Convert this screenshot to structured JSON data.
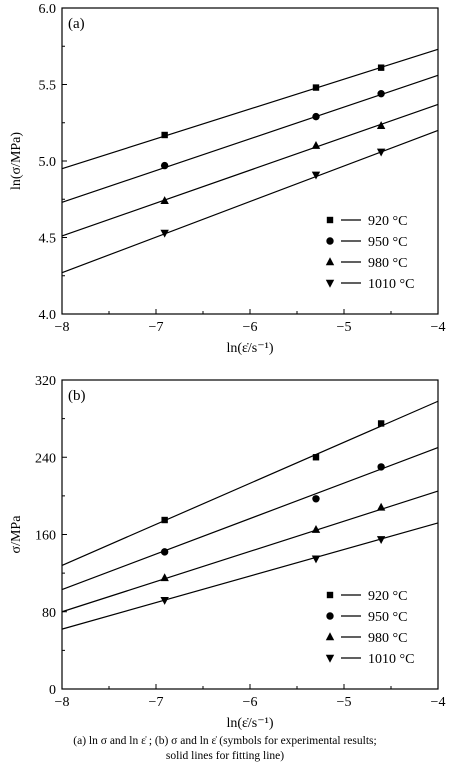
{
  "chart_data": [
    {
      "type": "scatter",
      "panel_label": "(a)",
      "xlabel": "ln(ε̇/s⁻¹)",
      "ylabel": "ln(σ/MPa)",
      "xlim": [
        -8,
        -4
      ],
      "ylim": [
        4.0,
        6.0
      ],
      "x_ticks": [
        -8,
        -7,
        -6,
        -5,
        -4
      ],
      "x_tick_labels": [
        "−8",
        "−7",
        "−6",
        "−5",
        "−4"
      ],
      "y_ticks": [
        4.0,
        4.5,
        5.0,
        5.5,
        6.0
      ],
      "y_tick_labels": [
        "4.0",
        "4.5",
        "5.0",
        "5.5",
        "6.0"
      ],
      "grid": false,
      "legend_position": "lower-right",
      "x": [
        -6.908,
        -5.298,
        -4.605
      ],
      "series": [
        {
          "name": "920 °C",
          "marker": "square",
          "values": [
            5.17,
            5.48,
            5.61
          ],
          "fit_range": [
            4.95,
            5.73
          ]
        },
        {
          "name": "950 °C",
          "marker": "circle",
          "values": [
            4.97,
            5.29,
            5.44
          ],
          "fit_range": [
            4.73,
            5.56
          ]
        },
        {
          "name": "980 °C",
          "marker": "triangle-up",
          "values": [
            4.74,
            5.1,
            5.23
          ],
          "fit_range": [
            4.51,
            5.37
          ]
        },
        {
          "name": "1010 °C",
          "marker": "triangle-down",
          "values": [
            4.53,
            4.91,
            5.06
          ],
          "fit_range": [
            4.27,
            5.2
          ]
        }
      ]
    },
    {
      "type": "scatter",
      "panel_label": "(b)",
      "xlabel": "ln(ε̇/s⁻¹)",
      "ylabel": "σ/MPa",
      "xlim": [
        -8,
        -4
      ],
      "ylim": [
        0,
        320
      ],
      "x_ticks": [
        -8,
        -7,
        -6,
        -5,
        -4
      ],
      "x_tick_labels": [
        "−8",
        "−7",
        "−6",
        "−5",
        "−4"
      ],
      "y_ticks": [
        0,
        80,
        160,
        240,
        320
      ],
      "y_tick_labels": [
        "0",
        "80",
        "160",
        "240",
        "320"
      ],
      "grid": false,
      "legend_position": "lower-right",
      "x": [
        -6.908,
        -5.298,
        -4.605
      ],
      "series": [
        {
          "name": "920 °C",
          "marker": "square",
          "values": [
            175,
            240,
            275
          ],
          "fit_range": [
            128,
            298
          ]
        },
        {
          "name": "950 °C",
          "marker": "circle",
          "values": [
            142,
            197,
            230
          ],
          "fit_range": [
            103,
            250
          ]
        },
        {
          "name": "980 °C",
          "marker": "triangle-up",
          "values": [
            115,
            165,
            188
          ],
          "fit_range": [
            80,
            205
          ]
        },
        {
          "name": "1010 °C",
          "marker": "triangle-down",
          "values": [
            92,
            135,
            155
          ],
          "fit_range": [
            62,
            172
          ]
        }
      ]
    }
  ],
  "caption": {
    "line1": "(a) ln σ  and  ln ε̇ ; (b) σ and  ln ε̇  (symbols for experimental results;",
    "line2": "solid lines for fitting line)"
  }
}
